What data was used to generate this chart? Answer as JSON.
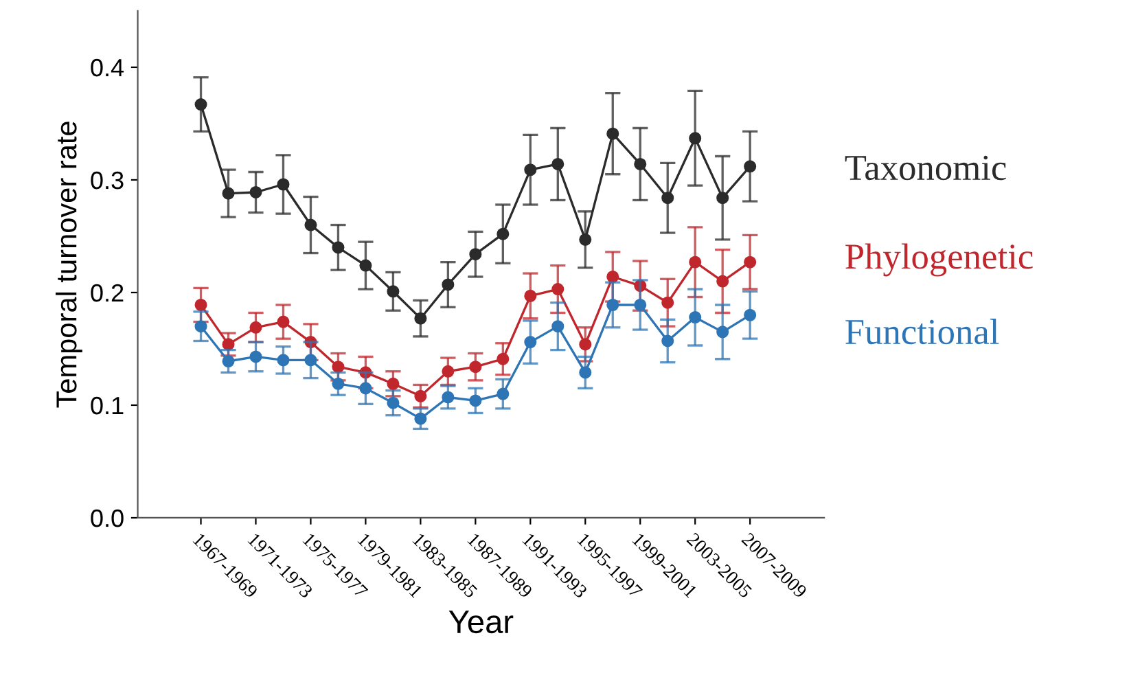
{
  "chart_data": {
    "type": "line",
    "xlabel": "Year",
    "ylabel": "Temporal turnover rate",
    "categories": [
      "1967-1969",
      null,
      "1971-1973",
      null,
      "1975-1977",
      null,
      "1979-1981",
      null,
      "1983-1985",
      null,
      "1987-1989",
      null,
      "1991-1993",
      null,
      "1995-1997",
      null,
      "1999-2001",
      null,
      "2003-2005",
      null,
      "2007-2009"
    ],
    "ylim": [
      0,
      0.45
    ],
    "yticks": [
      {
        "value": 0,
        "label": "0.0"
      },
      0.1,
      0.2,
      0.3,
      0.4
    ],
    "grid": false,
    "legend": "right",
    "marker": "circle",
    "line_style": "solid",
    "series": [
      {
        "name": "Taxonomic",
        "color": "#2b2b2b",
        "values": [
          0.367,
          0.288,
          0.289,
          0.296,
          0.26,
          0.24,
          0.224,
          0.201,
          0.177,
          0.207,
          0.234,
          0.252,
          0.309,
          0.314,
          0.247,
          0.341,
          0.314,
          0.284,
          0.337,
          0.284,
          0.312
        ],
        "errors": [
          0.024,
          0.021,
          0.018,
          0.026,
          0.025,
          0.02,
          0.021,
          0.017,
          0.016,
          0.02,
          0.02,
          0.026,
          0.031,
          0.032,
          0.025,
          0.036,
          0.032,
          0.031,
          0.042,
          0.037,
          0.031
        ]
      },
      {
        "name": "Phylogenetic",
        "color": "#c0272d",
        "values": [
          0.189,
          0.154,
          0.169,
          0.174,
          0.156,
          0.134,
          0.129,
          0.119,
          0.108,
          0.13,
          0.134,
          0.141,
          0.197,
          0.203,
          0.154,
          0.214,
          0.206,
          0.191,
          0.227,
          0.21,
          0.227
        ],
        "errors": [
          0.015,
          0.01,
          0.013,
          0.015,
          0.016,
          0.012,
          0.014,
          0.011,
          0.01,
          0.012,
          0.012,
          0.014,
          0.02,
          0.021,
          0.015,
          0.022,
          0.022,
          0.021,
          0.031,
          0.028,
          0.024
        ]
      },
      {
        "name": "Functional",
        "color": "#2e75b6",
        "values": [
          0.17,
          0.139,
          0.143,
          0.14,
          0.14,
          0.119,
          0.115,
          0.102,
          0.088,
          0.107,
          0.104,
          0.11,
          0.156,
          0.17,
          0.129,
          0.189,
          0.189,
          0.157,
          0.178,
          0.165,
          0.18
        ],
        "errors": [
          0.013,
          0.01,
          0.013,
          0.012,
          0.016,
          0.01,
          0.014,
          0.011,
          0.009,
          0.01,
          0.011,
          0.013,
          0.019,
          0.021,
          0.014,
          0.02,
          0.022,
          0.019,
          0.025,
          0.024,
          0.021
        ]
      }
    ]
  }
}
